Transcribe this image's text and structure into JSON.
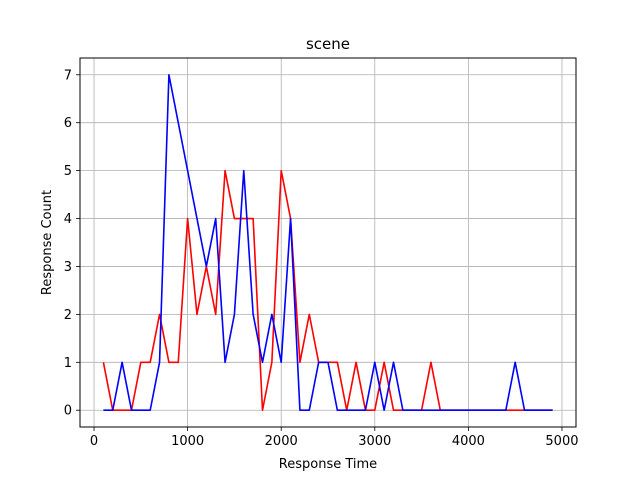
{
  "chart_data": {
    "type": "line",
    "title": "scene",
    "xlabel": "Response Time",
    "ylabel": "Response Count",
    "xlim": [
      -150,
      5150
    ],
    "ylim": [
      -0.35,
      7.35
    ],
    "xticks": [
      0,
      1000,
      2000,
      3000,
      4000,
      5000
    ],
    "yticks": [
      0,
      1,
      2,
      3,
      4,
      5,
      6,
      7
    ],
    "grid": true,
    "legend": "none",
    "series": [
      {
        "color": "#ff0000",
        "x": [
          100,
          200,
          300,
          400,
          500,
          600,
          700,
          800,
          900,
          1000,
          1100,
          1200,
          1300,
          1400,
          1500,
          1600,
          1700,
          1800,
          1900,
          2000,
          2100,
          2200,
          2300,
          2400,
          2500,
          2600,
          2700,
          2800,
          2900,
          3000,
          3100,
          3200,
          3300,
          3400,
          3500,
          3600,
          3700,
          3800,
          3900,
          4000,
          4100,
          4200,
          4300,
          4400,
          4500,
          4600,
          4700,
          4800,
          4900
        ],
        "values": [
          1,
          0,
          0,
          0,
          1,
          1,
          2,
          1,
          1,
          4,
          2,
          3,
          2,
          5,
          4,
          4,
          4,
          0,
          1,
          5,
          4,
          1,
          2,
          1,
          1,
          1,
          0,
          1,
          0,
          0,
          1,
          0,
          0,
          0,
          0,
          1,
          0,
          0,
          0,
          0,
          0,
          0,
          0,
          0,
          0,
          0,
          0,
          0,
          0
        ]
      },
      {
        "color": "#0000ff",
        "x": [
          100,
          200,
          300,
          400,
          500,
          600,
          700,
          800,
          900,
          1000,
          1100,
          1200,
          1300,
          1400,
          1500,
          1600,
          1700,
          1800,
          1900,
          2000,
          2100,
          2200,
          2300,
          2400,
          2500,
          2600,
          2700,
          2800,
          2900,
          3000,
          3100,
          3200,
          3300,
          3400,
          3500,
          3600,
          3700,
          3800,
          3900,
          4000,
          4100,
          4200,
          4300,
          4400,
          4500,
          4600,
          4700,
          4800,
          4900
        ],
        "values": [
          0,
          0,
          1,
          0,
          0,
          0,
          1,
          7,
          6,
          5,
          4,
          3,
          4,
          1,
          2,
          5,
          2,
          1,
          2,
          1,
          4,
          0,
          0,
          1,
          1,
          0,
          0,
          0,
          0,
          1,
          0,
          1,
          0,
          0,
          0,
          0,
          0,
          0,
          0,
          0,
          0,
          0,
          0,
          0,
          1,
          0,
          0,
          0,
          0
        ]
      }
    ]
  }
}
